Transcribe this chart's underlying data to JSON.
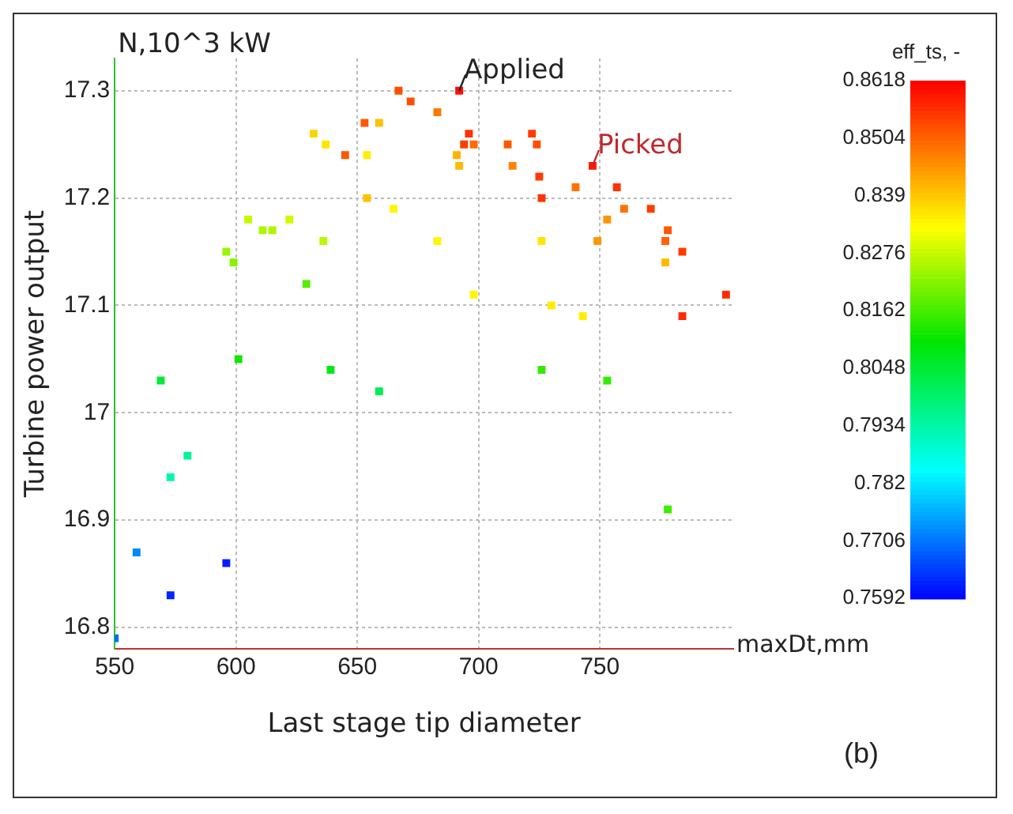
{
  "chart_data": {
    "type": "scatter",
    "xlabel": "Last stage tip diameter",
    "ylabel": "Turbine power output",
    "clabel": "eff_ts, -",
    "xlim": [
      550,
      805
    ],
    "xticks": [
      550,
      600,
      650,
      700,
      750
    ],
    "ylim": [
      16.78,
      17.33
    ],
    "yticks": [
      16.8,
      16.9,
      17.0,
      17.1,
      17.2,
      17.3
    ],
    "clim": [
      0.7592,
      0.8618
    ],
    "cticks": [
      0.7592,
      0.7706,
      0.782,
      0.7934,
      0.8048,
      0.8162,
      0.8276,
      0.839,
      0.8504,
      0.8618
    ],
    "grid": true,
    "marker": "square",
    "legend": false,
    "annotations": [
      "N,10^3 kW",
      "maxDt,mm",
      "(b)",
      {
        "text": "Applied",
        "x": 692,
        "y": 17.3
      },
      {
        "text": "Picked",
        "x": 747,
        "y": 17.23
      }
    ],
    "series": [
      {
        "x": [
          667,
          672,
          683,
          653,
          659,
          632,
          637,
          645,
          654,
          654,
          665,
          605,
          622,
          611,
          615,
          636,
          596,
          599,
          629,
          683,
          692,
          696,
          694,
          698,
          691,
          692,
          722,
          724,
          712,
          714,
          747,
          725,
          726,
          740,
          757,
          760,
          771,
          753,
          778,
          777,
          784,
          777,
          749,
          726,
          802,
          698,
          730,
          743,
          784,
          726,
          753,
          778,
          601,
          569,
          639,
          659,
          580,
          573,
          559,
          596,
          573,
          550
        ],
        "values": [
          17.3,
          17.29,
          17.28,
          17.27,
          17.27,
          17.26,
          17.25,
          17.24,
          17.24,
          17.2,
          17.19,
          17.18,
          17.18,
          17.17,
          17.17,
          17.16,
          17.15,
          17.14,
          17.12,
          17.16,
          17.3,
          17.26,
          17.25,
          17.25,
          17.24,
          17.23,
          17.26,
          17.25,
          17.25,
          17.23,
          17.23,
          17.22,
          17.2,
          17.21,
          17.21,
          17.19,
          17.19,
          17.18,
          17.17,
          17.16,
          17.15,
          17.14,
          17.16,
          17.16,
          17.11,
          17.11,
          17.1,
          17.09,
          17.09,
          17.04,
          17.03,
          16.91,
          17.05,
          17.03,
          17.04,
          17.02,
          16.96,
          16.94,
          16.87,
          16.86,
          16.83,
          16.79
        ],
        "cvalues": [
          0.853,
          0.853,
          0.848,
          0.852,
          0.84,
          0.838,
          0.836,
          0.852,
          0.835,
          0.84,
          0.834,
          0.828,
          0.829,
          0.826,
          0.826,
          0.827,
          0.824,
          0.822,
          0.818,
          0.834,
          0.86,
          0.856,
          0.855,
          0.85,
          0.842,
          0.841,
          0.855,
          0.853,
          0.852,
          0.847,
          0.859,
          0.855,
          0.856,
          0.849,
          0.856,
          0.849,
          0.855,
          0.845,
          0.852,
          0.851,
          0.855,
          0.841,
          0.845,
          0.836,
          0.857,
          0.834,
          0.835,
          0.835,
          0.857,
          0.815,
          0.815,
          0.816,
          0.812,
          0.805,
          0.808,
          0.802,
          0.795,
          0.793,
          0.773,
          0.762,
          0.763,
          0.77
        ]
      }
    ]
  }
}
